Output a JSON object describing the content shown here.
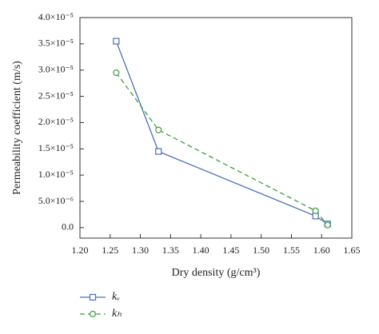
{
  "chart_data": {
    "type": "line",
    "xlabel": "Dry density (g/cm³)",
    "ylabel": "Permeability coefficient (m/s)",
    "x": [
      1.26,
      1.33,
      1.59,
      1.61
    ],
    "series": [
      {
        "name": "kᵥ",
        "color": "#4a6fba",
        "linestyle": "solid",
        "marker": "square",
        "values": [
          3.55e-05,
          1.45e-05,
          2.2e-06,
          7e-07
        ]
      },
      {
        "name": "kₕ",
        "color": "#3c9e3c",
        "linestyle": "dashed",
        "marker": "circle",
        "values": [
          2.95e-05,
          1.86e-05,
          3.2e-06,
          5e-07
        ]
      }
    ],
    "xlim": [
      1.2,
      1.65
    ],
    "xticks": [
      {
        "value": 1.2,
        "label": "1.20"
      },
      1.25,
      {
        "value": 1.3,
        "label": "1.30"
      },
      1.35,
      {
        "value": 1.4,
        "label": "1.40"
      },
      1.45,
      {
        "value": 1.5,
        "label": "1.50"
      },
      1.55,
      {
        "value": 1.6,
        "label": "1.60"
      },
      1.65
    ],
    "ylim": [
      -2e-06,
      4e-05
    ],
    "yticks": [
      {
        "value": 0,
        "label": "0.0"
      },
      {
        "value": 5e-06,
        "label": "5.0×10⁻⁶"
      },
      {
        "value": 1e-05,
        "label": "1.0×10⁻⁵"
      },
      {
        "value": 1.5e-05,
        "label": "1.5×10⁻⁵"
      },
      {
        "value": 2e-05,
        "label": "2.0×10⁻⁵"
      },
      {
        "value": 2.5e-05,
        "label": "2.5×10⁻⁵"
      },
      {
        "value": 3e-05,
        "label": "3.0×10⁻⁵"
      },
      {
        "value": 3.5e-05,
        "label": "3.5×10⁻⁵"
      },
      {
        "value": 4e-05,
        "label": "4.0×10⁻⁵"
      }
    ]
  }
}
